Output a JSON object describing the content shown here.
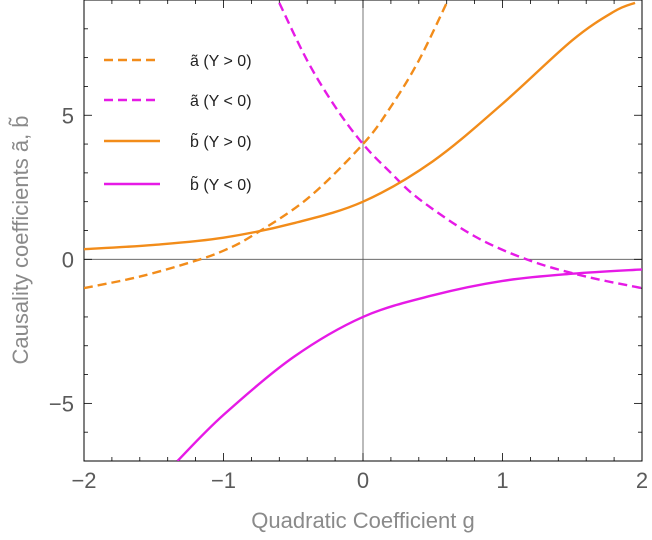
{
  "chart_data": {
    "type": "line",
    "xlabel": "Quadratic Coefficient  g",
    "ylabel": "Causality coefficients  ã, b̃",
    "xlim": [
      -2.0,
      2.0
    ],
    "ylim": [
      -7.0,
      9.0
    ],
    "x_ticks": [
      -2,
      -1,
      0,
      1,
      2
    ],
    "x_tick_labels": [
      "−2",
      "−1",
      "0",
      "1",
      "2"
    ],
    "y_ticks": [
      -5,
      0,
      5
    ],
    "y_tick_labels": [
      "−5",
      "0",
      "5"
    ],
    "grid": false,
    "legend_position": "top-left",
    "series": [
      {
        "name": "ã (Y > 0)",
        "color": "#f28c1a",
        "dash": "dashed",
        "x": [
          -2.0,
          -1.6,
          -1.2,
          -1.0,
          -0.8,
          -0.4,
          0.0,
          0.2,
          0.4,
          0.6
        ],
        "y": [
          -1.0,
          -0.6,
          -0.05,
          0.3,
          0.8,
          2.1,
          4.0,
          5.3,
          6.9,
          8.9
        ]
      },
      {
        "name": "ã (Y < 0)",
        "color": "#e61ae6",
        "dash": "dashed",
        "x": [
          -0.6,
          -0.4,
          -0.2,
          0.0,
          0.2,
          0.4,
          0.8,
          1.2,
          1.6,
          2.0
        ],
        "y": [
          8.9,
          6.9,
          5.3,
          4.0,
          3.0,
          2.1,
          0.8,
          -0.05,
          -0.6,
          -1.0
        ]
      },
      {
        "name": "b̃ (Y > 0)",
        "color": "#f28c1a",
        "dash": "solid",
        "x": [
          -2.0,
          -1.5,
          -1.0,
          -0.5,
          0.0,
          0.5,
          1.0,
          1.5,
          1.8,
          1.95
        ],
        "y": [
          0.35,
          0.5,
          0.75,
          1.25,
          2.0,
          3.4,
          5.4,
          7.6,
          8.6,
          8.9
        ]
      },
      {
        "name": "b̃ (Y < 0)",
        "color": "#e61ae6",
        "dash": "solid",
        "x": [
          -1.33,
          -1.0,
          -0.5,
          0.0,
          0.5,
          1.0,
          1.5,
          2.0
        ],
        "y": [
          -7.0,
          -5.4,
          -3.4,
          -2.0,
          -1.25,
          -0.75,
          -0.5,
          -0.35
        ]
      }
    ]
  }
}
